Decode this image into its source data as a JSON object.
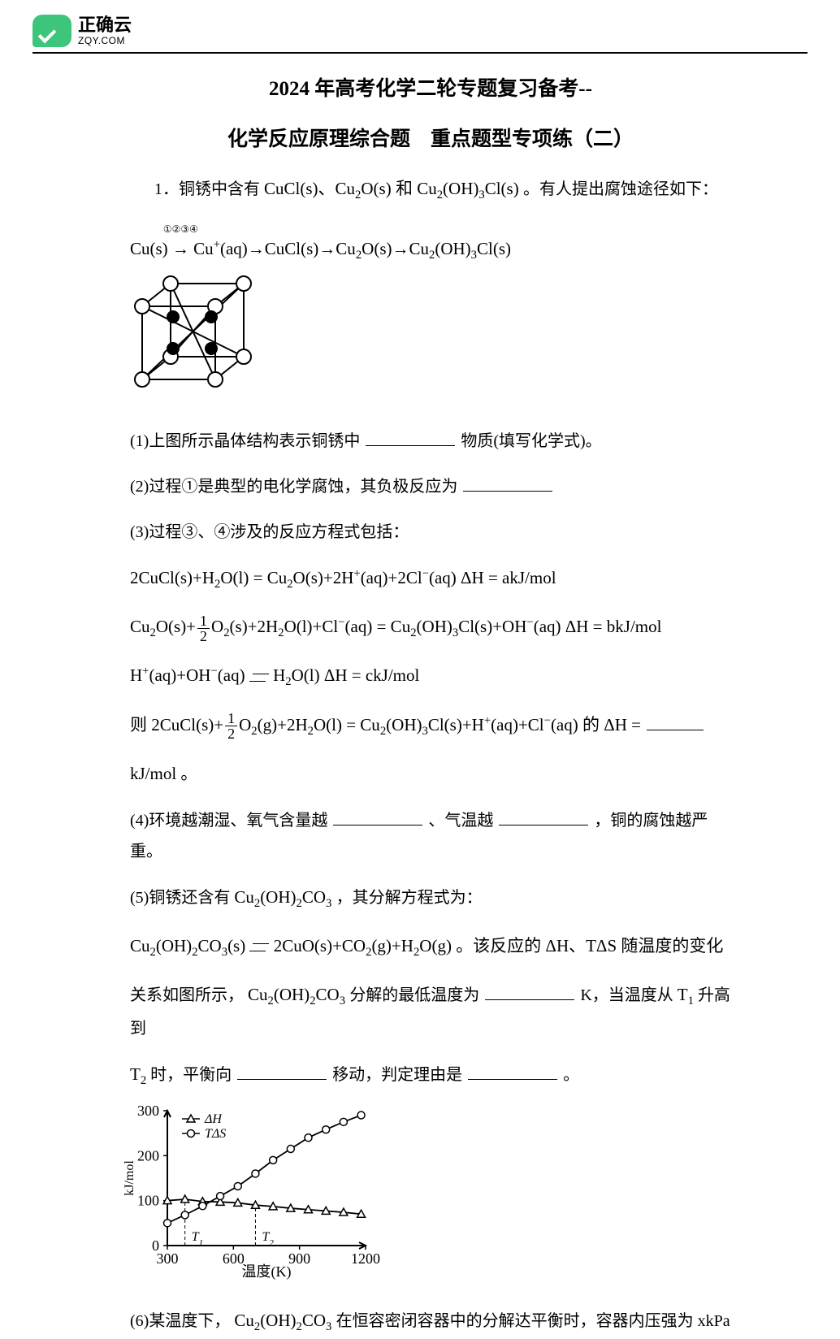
{
  "logo": {
    "cn": "正确云",
    "en": "ZQY.COM"
  },
  "title1": "2024 年高考化学二轮专题复习备考--",
  "title2": "化学反应原理综合题　重点题型专项练（二）",
  "q1_intro_a": "1．铜锈中含有",
  "q1_intro_b": "CuCl(s)、Cu",
  "q1_intro_c": "O(s)",
  "q1_intro_d": " 和 ",
  "q1_intro_e": "Cu",
  "q1_intro_f": "(OH)",
  "q1_intro_g": "Cl(s)",
  "q1_intro_h": "。有人提出腐蚀途径如下：",
  "pathway_a": "Cu(s)",
  "pathway_labels": "①②③④",
  "pathway_b": "Cu",
  "pathway_c": "(aq)→CuCl(s)→Cu",
  "pathway_d": "O(s)→Cu",
  "pathway_e": "(OH)",
  "pathway_f": "Cl(s)",
  "q1_1_a": "(1)上图所示晶体结构表示铜锈中",
  "q1_1_b": "物质(填写化学式)。",
  "q1_2_a": "(2)过程①是典型的电化学腐蚀，其负极反应为",
  "q1_3": "(3)过程③、④涉及的反应方程式包括：",
  "eq1": "2CuCl(s)+H₂O(l) = Cu₂O(s)+2H⁺(aq)+2Cl⁻(aq) ΔH = akJ/mol",
  "eq2": "Cu₂O(s)+ ½ O₂(s)+2H₂O(l)+Cl⁻(aq) = Cu₂(OH)₃Cl(s)+OH⁻(aq) ΔH = bkJ/mol",
  "eq3": "H⁺(aq)+OH⁻(aq) ⇌ H₂O(l) ΔH = ckJ/mol",
  "eq4_a": "则",
  "eq4_b": "2CuCl(s)+ ½ O₂(g)+2H₂O(l) = Cu₂(OH)₃Cl(s)+H⁺(aq)+Cl⁻(aq)",
  "eq4_c": " 的 ΔH = ",
  "eq4_unit": "kJ/mol 。",
  "q1_4_a": "(4)环境越潮湿、氧气含量越",
  "q1_4_b": "、气温越",
  "q1_4_c": "，铜的腐蚀越严重。",
  "q1_5_a": "(5)铜锈还含有",
  "q1_5_b": "Cu",
  "q1_5_c": "(OH)",
  "q1_5_d": "CO",
  "q1_5_e": "，其分解方程式为：",
  "eq5": "Cu₂(OH)₂CO₃(s) ⇌ 2CuO(s)+CO₂(g)+H₂O(g)",
  "q1_5_tail_a": "。该反应的 ΔH、TΔS 随温度的变化",
  "q1_5_tail_b": "关系如图所示，",
  "q1_5_tail_c": "Cu",
  "q1_5_tail_d": "(OH)",
  "q1_5_tail_e": "CO",
  "q1_5_tail_f": " 分解的最低温度为",
  "q1_5_tail_g": "K，当温度从",
  "q1_5_tail_h": "T",
  "q1_5_tail_i": " 升高到",
  "q1_5_tail_j": "T",
  "q1_5_tail_k": " 时，平衡向",
  "q1_5_tail_l": " 移动，判定理由是",
  "q1_5_tail_m": "。",
  "chart": {
    "type": "line",
    "ylabel": "kJ/mol",
    "xlabel": "温度(K)",
    "xlim": [
      300,
      1200
    ],
    "ylim": [
      0,
      300
    ],
    "yticks": [
      0,
      100,
      200,
      300
    ],
    "xticks": [
      300,
      600,
      900,
      1200
    ],
    "marks": {
      "T1": 380,
      "T2": 700
    },
    "series": [
      {
        "name": "ΔH",
        "marker": "triangle",
        "color": "#000000",
        "x": [
          300,
          380,
          460,
          540,
          620,
          700,
          780,
          860,
          940,
          1020,
          1100,
          1180
        ],
        "y": [
          100,
          103,
          98,
          97,
          95,
          90,
          87,
          83,
          80,
          77,
          74,
          70
        ]
      },
      {
        "name": "TΔS",
        "marker": "circle",
        "color": "#000000",
        "x": [
          300,
          380,
          460,
          540,
          620,
          700,
          780,
          860,
          940,
          1020,
          1100,
          1180
        ],
        "y": [
          50,
          68,
          88,
          110,
          132,
          160,
          190,
          215,
          240,
          258,
          275,
          290
        ]
      }
    ],
    "legend": [
      "ΔH",
      "TΔS"
    ],
    "axis_fontsize": 18,
    "background_color": "#ffffff",
    "axis_color": "#000000"
  },
  "q1_6_a": "(6)某温度下，",
  "q1_6_b": "Cu",
  "q1_6_c": "(OH)",
  "q1_6_d": "CO",
  "q1_6_e": " 在恒容密闭容器中的分解达平衡时，容器内压强为 xkPa"
}
